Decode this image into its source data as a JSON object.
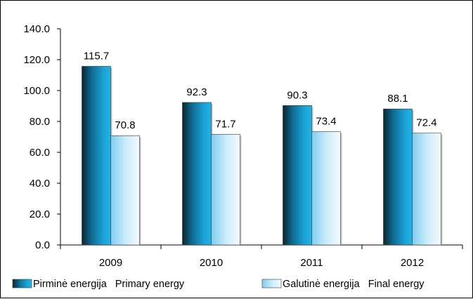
{
  "chart_data": {
    "type": "bar",
    "categories": [
      "2009",
      "2010",
      "2011",
      "2012"
    ],
    "series": [
      {
        "name": "Pirminė energija   Primary energy",
        "values": [
          115.7,
          92.3,
          90.3,
          88.1
        ],
        "labels": [
          "115.7",
          "92.3",
          "90.3",
          "88.1"
        ],
        "color": "#1a9ed0"
      },
      {
        "name": "Galutinė energija   Final energy",
        "values": [
          70.8,
          71.7,
          73.4,
          72.4
        ],
        "labels": [
          "70.8",
          "71.7",
          "73.4",
          "72.4"
        ],
        "color": "#c4e8f8"
      }
    ],
    "ylim": [
      0,
      140
    ],
    "yticks": [
      "0.0",
      "20.0",
      "40.0",
      "60.0",
      "80.0",
      "100.0",
      "120.0",
      "140.0"
    ],
    "grid": false,
    "legend_position": "bottom",
    "xlabel": "",
    "ylabel": "",
    "title": ""
  }
}
